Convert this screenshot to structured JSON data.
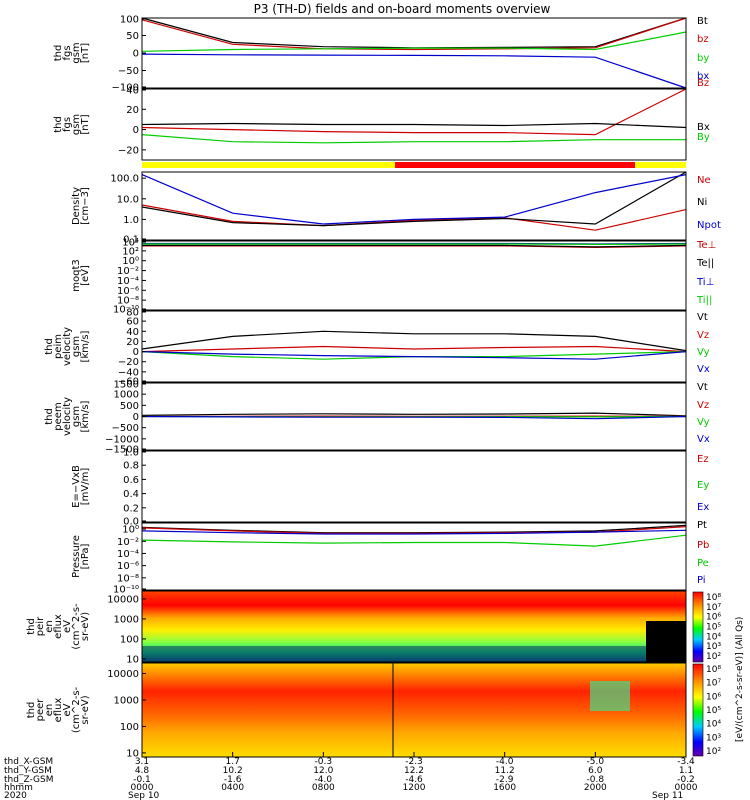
{
  "title": "P3 (TH-D) fields and on-board moments overview",
  "panels": [
    {
      "id": "fgs_gsm",
      "ylabel": [
        "thd",
        "fgs",
        "gsm",
        "[nT]"
      ],
      "ticks": [
        "100",
        "50",
        "0",
        "−50",
        "−100"
      ],
      "tick_values": [
        100,
        50,
        0,
        -50,
        -100
      ],
      "ylim": [
        -100,
        100
      ],
      "legend": [
        {
          "label": "Bt",
          "color": "#000000"
        },
        {
          "label": "bz",
          "color": "#cc0000"
        },
        {
          "label": "by",
          "color": "#00cc00"
        },
        {
          "label": "bx",
          "color": "#0000cc"
        }
      ]
    },
    {
      "id": "fgs_dsl",
      "ylabel": [
        "thd",
        "fgs",
        "gsm",
        "[nT]"
      ],
      "ticks": [
        "40",
        "20",
        "0",
        "−20"
      ],
      "tick_values": [
        40,
        20,
        0,
        -20
      ],
      "ylim": [
        -30,
        40
      ],
      "legend": [
        {
          "label": "Bz",
          "color": "#cc0000"
        },
        {
          "label": "Bx",
          "color": "#000000"
        },
        {
          "label": "By",
          "color": "#00cc00"
        }
      ]
    },
    {
      "id": "density",
      "ylabel": [
        "Density",
        "[cm−3]"
      ],
      "ticks": [
        "100.0",
        "10.0",
        "1.0",
        "0.1"
      ],
      "tick_values": [
        100.0,
        10.0,
        1.0,
        0.1
      ],
      "ylim": [
        0.1,
        200
      ],
      "scale": "log",
      "legend": [
        {
          "label": "Ne",
          "color": "#cc0000"
        },
        {
          "label": "Ni",
          "color": "#000000"
        },
        {
          "label": "Npot",
          "color": "#0000cc"
        }
      ]
    },
    {
      "id": "temperature",
      "ylabel": [
        "moqt3",
        "[eV]"
      ],
      "ticks": [
        "10⁴",
        "10²",
        "10⁰",
        "10⁻²",
        "10⁻⁴",
        "10⁻⁶",
        "10⁻⁸",
        "10⁻¹⁰"
      ],
      "tick_values": [
        4,
        2,
        0,
        -2,
        -4,
        -6,
        -8,
        -10
      ],
      "ylim": [
        -10,
        4
      ],
      "scale": "log",
      "legend": [
        {
          "label": "Te⊥",
          "color": "#cc0000"
        },
        {
          "label": "Te||",
          "color": "#000000"
        },
        {
          "label": "Ti⊥",
          "color": "#0000cc"
        },
        {
          "label": "Ti||",
          "color": "#00cc00"
        }
      ]
    },
    {
      "id": "peim_velocity",
      "ylabel": [
        "thd",
        "peim",
        "velocity",
        "gsm",
        "[km/s]"
      ],
      "ticks": [
        "80",
        "60",
        "40",
        "20",
        "0",
        "−20",
        "−40",
        "−60"
      ],
      "tick_values": [
        80,
        60,
        40,
        20,
        0,
        -20,
        -40,
        -60
      ],
      "ylim": [
        -60,
        80
      ],
      "legend": [
        {
          "label": "Vt",
          "color": "#000000"
        },
        {
          "label": "Vz",
          "color": "#cc0000"
        },
        {
          "label": "Vy",
          "color": "#00cc00"
        },
        {
          "label": "Vx",
          "color": "#0000cc"
        }
      ]
    },
    {
      "id": "peem_velocity",
      "ylabel": [
        "thd",
        "peem",
        "velocity",
        "gsm",
        "[km/s]"
      ],
      "ticks": [
        "1500",
        "1000",
        "500",
        "0",
        "−500",
        "−1000",
        "−1500"
      ],
      "tick_values": [
        1500,
        1000,
        500,
        0,
        -500,
        -1000,
        -1500
      ],
      "ylim": [
        -1500,
        1500
      ],
      "legend": [
        {
          "label": "Vt",
          "color": "#000000"
        },
        {
          "label": "Vz",
          "color": "#cc0000"
        },
        {
          "label": "Vy",
          "color": "#00cc00"
        },
        {
          "label": "Vx",
          "color": "#0000cc"
        }
      ]
    },
    {
      "id": "efield",
      "ylabel": [
        "E=−VxB",
        "[mV/m]"
      ],
      "ticks": [
        "1.0",
        "0.8",
        "0.6",
        "0.4",
        "0.2",
        "0.0"
      ],
      "tick_values": [
        1.0,
        0.8,
        0.6,
        0.4,
        0.2,
        0.0
      ],
      "ylim": [
        0.0,
        1.0
      ],
      "legend": [
        {
          "label": "Ez",
          "color": "#cc0000"
        },
        {
          "label": "Ey",
          "color": "#00cc00"
        },
        {
          "label": "Ex",
          "color": "#0000cc"
        }
      ]
    },
    {
      "id": "pressure",
      "ylabel": [
        "Pressure",
        "[nPa]"
      ],
      "ticks": [
        "10⁰",
        "10⁻²",
        "10⁻⁴",
        "10⁻⁶",
        "10⁻⁸",
        "10⁻¹⁰"
      ],
      "tick_values": [
        0,
        -2,
        -4,
        -6,
        -8,
        -10
      ],
      "ylim": [
        -10,
        1
      ],
      "scale": "log",
      "legend": [
        {
          "label": "Pt",
          "color": "#000000"
        },
        {
          "label": "Pb",
          "color": "#cc0000"
        },
        {
          "label": "Pe",
          "color": "#00cc00"
        },
        {
          "label": "Pi",
          "color": "#0000cc"
        }
      ]
    },
    {
      "id": "peir_spectrogram",
      "ylabel": [
        "thd",
        "peir",
        "en",
        "eflux",
        "eV",
        "(cm^2-s-",
        "sr-eV)"
      ],
      "ticks": [
        "10000",
        "1000",
        "100",
        "10"
      ],
      "tick_values": [
        10000,
        1000,
        100,
        10
      ],
      "ylim": [
        7,
        25000
      ],
      "scale": "log",
      "colorbar_ticks": [
        "10⁸",
        "10⁷",
        "10⁶",
        "10⁵",
        "10⁴",
        "10³",
        "10²"
      ]
    },
    {
      "id": "peer_spectrogram",
      "ylabel": [
        "thd",
        "peer",
        "en",
        "eflux",
        "eV",
        "(cm^2-s-",
        "sr-eV)"
      ],
      "ticks": [
        "10000",
        "1000",
        "100",
        "10"
      ],
      "tick_values": [
        10000,
        1000,
        100,
        10
      ],
      "ylim": [
        7,
        25000
      ],
      "scale": "log",
      "colorbar_ticks": [
        "10⁸",
        "10⁷",
        "10⁶",
        "10⁵",
        "10⁴",
        "10³",
        "10²"
      ]
    }
  ],
  "colorbar_label": "[eV/(cm^2-s-sr-eV)] (All Qs)",
  "xaxis": {
    "row_labels": [
      "thd_X-GSM",
      "thd_Y-GSM",
      "thd_Z-GSM",
      "hhmm",
      "2020"
    ],
    "columns": [
      {
        "x": "3.1",
        "y": "4.8",
        "z": "-0.1",
        "hhmm": "0000",
        "date": "Sep 10"
      },
      {
        "x": "1.7",
        "y": "10.2",
        "z": "-1.6",
        "hhmm": "0400",
        "date": ""
      },
      {
        "x": "-0.3",
        "y": "12.0",
        "z": "-4.0",
        "hhmm": "0800",
        "date": ""
      },
      {
        "x": "-2.3",
        "y": "12.2",
        "z": "-4.6",
        "hhmm": "1200",
        "date": ""
      },
      {
        "x": "-4.0",
        "y": "11.2",
        "z": "-2.9",
        "hhmm": "1600",
        "date": ""
      },
      {
        "x": "-5.0",
        "y": "6.0",
        "z": "-0.8",
        "hhmm": "2000",
        "date": ""
      },
      {
        "x": "-3.4",
        "y": "1.1",
        "z": "-0.2",
        "hhmm": "0000",
        "date": "Sep 11"
      }
    ]
  },
  "chart_data": [
    {
      "type": "line",
      "title": "P3 (TH-D) fields and on-board moments overview",
      "ylabel": "thd fgs gsm [nT]",
      "x": [
        0,
        4,
        8,
        12,
        16,
        20,
        24
      ],
      "ylim": [
        -100,
        100
      ],
      "series": [
        {
          "name": "Bt",
          "values": [
            100,
            30,
            18,
            15,
            16,
            18,
            100
          ]
        },
        {
          "name": "bz",
          "values": [
            95,
            25,
            12,
            10,
            12,
            15,
            100
          ]
        },
        {
          "name": "by",
          "values": [
            5,
            10,
            12,
            14,
            14,
            10,
            60
          ]
        },
        {
          "name": "bx",
          "values": [
            -3,
            -5,
            -6,
            -7,
            -8,
            -12,
            -100
          ]
        }
      ]
    },
    {
      "type": "line",
      "ylabel": "thd fgs gsm [nT]",
      "x": [
        0,
        4,
        8,
        12,
        16,
        20,
        24
      ],
      "ylim": [
        -30,
        40
      ],
      "series": [
        {
          "name": "Bz",
          "values": [
            2,
            0,
            -2,
            -3,
            -3,
            -5,
            40
          ]
        },
        {
          "name": "Bx",
          "values": [
            5,
            6,
            5,
            5,
            4,
            6,
            2
          ]
        },
        {
          "name": "By",
          "values": [
            -5,
            -12,
            -13,
            -12,
            -12,
            -10,
            -10
          ]
        }
      ]
    },
    {
      "type": "line",
      "ylabel": "Density [cm-3]",
      "x": [
        0,
        4,
        8,
        12,
        16,
        20,
        24
      ],
      "ylim": [
        0.1,
        200
      ],
      "series": [
        {
          "name": "Ne",
          "values": [
            5,
            0.8,
            0.5,
            0.9,
            1.2,
            0.3,
            3
          ]
        },
        {
          "name": "Ni",
          "values": [
            4,
            0.7,
            0.5,
            0.8,
            1.1,
            0.6,
            200
          ]
        },
        {
          "name": "Npot",
          "values": [
            150,
            2,
            0.6,
            1,
            1.3,
            20,
            150
          ]
        }
      ]
    },
    {
      "type": "line",
      "ylabel": "moqt3 [eV]",
      "x": [
        0,
        4,
        8,
        12,
        16,
        20,
        24
      ],
      "ylim": [
        -10,
        4
      ],
      "series": [
        {
          "name": "Te⊥",
          "values": [
            3,
            3,
            3,
            3,
            3,
            2.7,
            3
          ]
        },
        {
          "name": "Te||",
          "values": [
            3.1,
            3.1,
            3.1,
            3.1,
            3.1,
            2.8,
            3.1
          ]
        },
        {
          "name": "Ti⊥",
          "values": [
            3.5,
            3.5,
            3.5,
            3.5,
            3.5,
            3.4,
            3.5
          ]
        },
        {
          "name": "Ti||",
          "values": [
            3.4,
            3.4,
            3.4,
            3.4,
            3.4,
            3.3,
            3.4
          ]
        }
      ]
    },
    {
      "type": "line",
      "ylabel": "thd peim velocity gsm [km/s]",
      "x": [
        0,
        4,
        8,
        12,
        16,
        20,
        24
      ],
      "ylim": [
        -60,
        80
      ],
      "series": [
        {
          "name": "Vt",
          "values": [
            5,
            30,
            40,
            35,
            35,
            30,
            2
          ]
        },
        {
          "name": "Vz",
          "values": [
            0,
            5,
            10,
            5,
            8,
            10,
            0
          ]
        },
        {
          "name": "Vy",
          "values": [
            0,
            -10,
            -15,
            -10,
            -10,
            -5,
            0
          ]
        },
        {
          "name": "Vx",
          "values": [
            0,
            -5,
            -8,
            -10,
            -12,
            -15,
            0
          ]
        }
      ]
    },
    {
      "type": "line",
      "ylabel": "thd peem velocity gsm [km/s]",
      "x": [
        0,
        4,
        8,
        12,
        16,
        20,
        24
      ],
      "ylim": [
        -1500,
        1500
      ],
      "series": [
        {
          "name": "Vt",
          "values": [
            50,
            100,
            120,
            100,
            110,
            150,
            30
          ]
        },
        {
          "name": "Vz",
          "values": [
            0,
            10,
            20,
            10,
            15,
            20,
            0
          ]
        },
        {
          "name": "Vy",
          "values": [
            0,
            -10,
            -20,
            -15,
            -10,
            -20,
            0
          ]
        },
        {
          "name": "Vx",
          "values": [
            0,
            -20,
            -30,
            -30,
            -40,
            -100,
            0
          ]
        }
      ]
    },
    {
      "type": "line",
      "ylabel": "E=-VxB [mV/m]",
      "x": [
        0,
        4,
        8,
        12,
        16,
        20,
        24
      ],
      "ylim": [
        0,
        1
      ],
      "series": []
    },
    {
      "type": "line",
      "ylabel": "Pressure [nPa]",
      "x": [
        0,
        4,
        8,
        12,
        16,
        20,
        24
      ],
      "ylim": [
        -10,
        1
      ],
      "series": [
        {
          "name": "Pt",
          "values": [
            0.3,
            -0.2,
            -0.6,
            -0.6,
            -0.5,
            -0.3,
            0.6
          ]
        },
        {
          "name": "Pb",
          "values": [
            0.2,
            -0.3,
            -0.7,
            -0.7,
            -0.6,
            -0.5,
            0.4
          ]
        },
        {
          "name": "Pe",
          "values": [
            -1.8,
            -2.1,
            -2.3,
            -2.2,
            -2.2,
            -2.8,
            -1
          ]
        },
        {
          "name": "Pi",
          "values": [
            -0.3,
            -0.6,
            -0.8,
            -0.8,
            -0.7,
            -0.5,
            -0.2
          ]
        }
      ]
    },
    {
      "type": "heatmap",
      "ylabel": "thd peir en eflux eV (cm^2-s-sr-eV)",
      "x": [
        0,
        4,
        8,
        12,
        16,
        20,
        24
      ],
      "ylim": [
        7,
        25000
      ]
    },
    {
      "type": "heatmap",
      "ylabel": "thd peer en eflux eV (cm^2-s-sr-eV)",
      "x": [
        0,
        4,
        8,
        12,
        16,
        20,
        24
      ],
      "ylim": [
        7,
        25000
      ]
    }
  ]
}
